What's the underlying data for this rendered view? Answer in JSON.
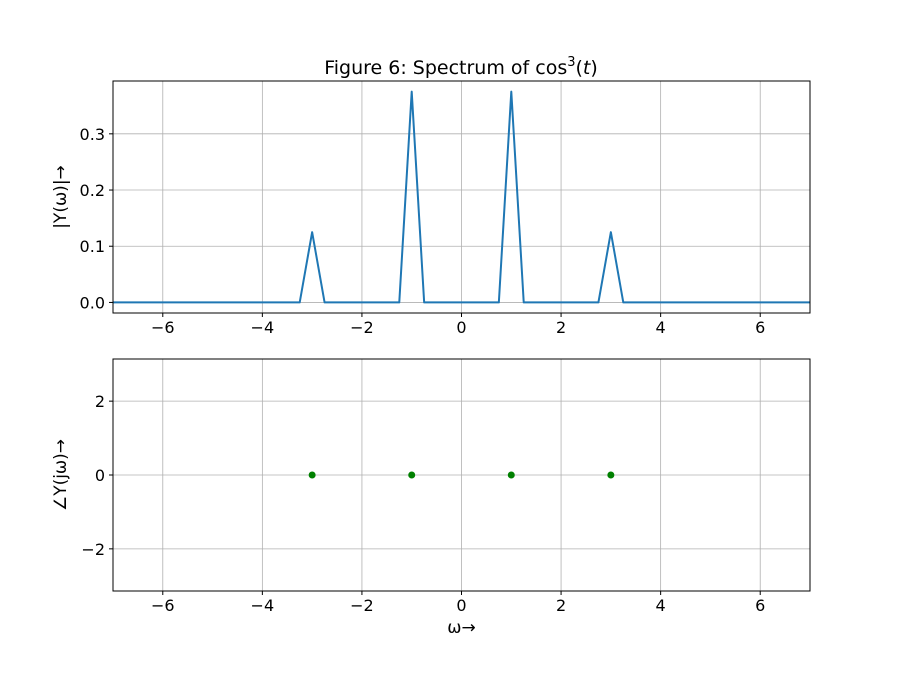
{
  "figure": {
    "title_prefix": "Figure 6: Spectrum of cos",
    "title_superscript": "3",
    "title_suffix_open": "(",
    "title_suffix_var": "t",
    "title_suffix_close": ")"
  },
  "chart_data": [
    {
      "type": "line",
      "xlabel": "",
      "ylabel": "|Y(ω)|→",
      "xlim": [
        -7,
        7
      ],
      "ylim": [
        -0.0188,
        0.394
      ],
      "xticks": [
        -6,
        -4,
        -2,
        0,
        2,
        4,
        6
      ],
      "xtick_labels": [
        "−6",
        "−4",
        "−2",
        "0",
        "2",
        "4",
        "6"
      ],
      "yticks": [
        0.0,
        0.1,
        0.2,
        0.3
      ],
      "ytick_labels": [
        "0.0",
        "0.1",
        "0.2",
        "0.3"
      ],
      "grid": true,
      "series": [
        {
          "color": "#1f77b4",
          "x": [
            -7,
            -3.25,
            -3.0,
            -2.75,
            -1.25,
            -1.0,
            -0.75,
            0.75,
            1.0,
            1.25,
            2.75,
            3.0,
            3.25,
            7
          ],
          "y": [
            0,
            0,
            0.125,
            0,
            0,
            0.375,
            0,
            0,
            0.375,
            0,
            0,
            0.125,
            0,
            0
          ]
        }
      ]
    },
    {
      "type": "scatter",
      "xlabel": "ω→",
      "ylabel": "∠Y(jω)→",
      "xlim": [
        -7,
        7
      ],
      "ylim": [
        -3.1416,
        3.1416
      ],
      "xticks": [
        -6,
        -4,
        -2,
        0,
        2,
        4,
        6
      ],
      "xtick_labels": [
        "−6",
        "−4",
        "−2",
        "0",
        "2",
        "4",
        "6"
      ],
      "yticks": [
        -2,
        0,
        2
      ],
      "ytick_labels": [
        "−2",
        "0",
        "2"
      ],
      "grid": true,
      "series": [
        {
          "color": "#008000",
          "x": [
            -3,
            -1,
            1,
            3
          ],
          "y": [
            0,
            0,
            0,
            0
          ]
        }
      ]
    }
  ]
}
